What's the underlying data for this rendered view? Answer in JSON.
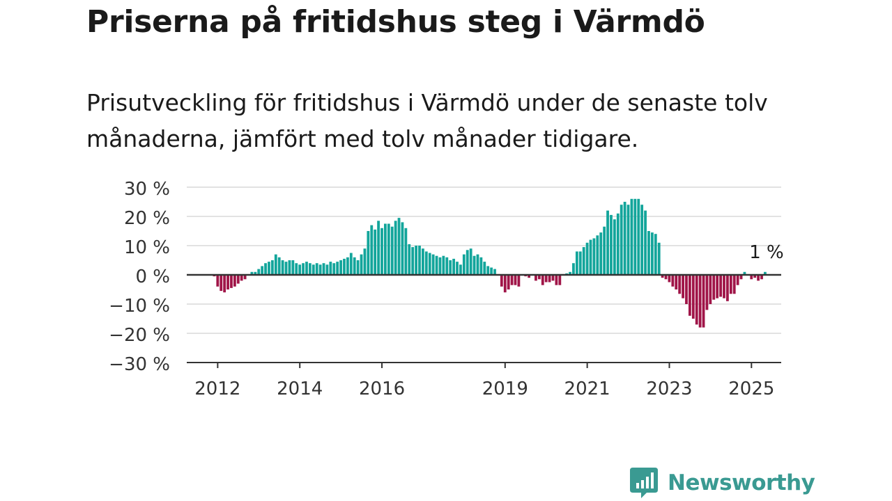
{
  "header": {
    "title": "Priserna på fritidshus steg i Värmdö",
    "subtitle": "Prisutveckling för fritidshus i Värmdö under de senaste tolv månaderna, jämfört med tolv månader tidigare."
  },
  "brand": {
    "name": "Newsworthy",
    "color": "#3a9a92"
  },
  "colors": {
    "positive": "#13a59b",
    "negative": "#a01548",
    "grid": "#d8d8d8",
    "axis": "#333333"
  },
  "chart_data": {
    "type": "bar",
    "x_start": "2011-12",
    "frequency": "monthly",
    "ylim": [
      -30,
      30
    ],
    "y_ticks": [
      -30,
      -20,
      -10,
      0,
      10,
      20,
      30
    ],
    "y_tick_labels": [
      "−30 %",
      "−20 %",
      "−10 %",
      "0 %",
      "10 %",
      "20 %",
      "30 %"
    ],
    "x_ticks": [
      "2012-01",
      "2014-01",
      "2016-01",
      "2019-01",
      "2021-01",
      "2023-01",
      "2025-01"
    ],
    "x_tick_labels": [
      "2012",
      "2014",
      "2016",
      "2019",
      "2021",
      "2023",
      "2025"
    ],
    "last_value_label": "1 %",
    "values": [
      -0.5,
      -4,
      -5.5,
      -6,
      -5,
      -4.5,
      -4,
      -3,
      -2,
      -1.5,
      0,
      1,
      1,
      2,
      3,
      4,
      4.5,
      5,
      7,
      6,
      5,
      4.5,
      5,
      5,
      4,
      3.5,
      4,
      4.5,
      4,
      3.5,
      4,
      3.5,
      4,
      3.5,
      4.5,
      4,
      4.5,
      5,
      5.5,
      6,
      7.5,
      6,
      5,
      7,
      9,
      15,
      17,
      15.5,
      18.5,
      16,
      17.5,
      17.5,
      16.5,
      18.5,
      19.5,
      18,
      16,
      10.5,
      9.5,
      10,
      10,
      9,
      8,
      7.5,
      7,
      6.5,
      6,
      6.5,
      6,
      5,
      5.5,
      4.5,
      3.5,
      7,
      8.5,
      9,
      6.5,
      7,
      6,
      4.5,
      3,
      2.5,
      2,
      0,
      -4,
      -6,
      -5,
      -3.5,
      -3.5,
      -4,
      0,
      -0.5,
      -1,
      0,
      -2,
      -1.5,
      -3.5,
      -2.5,
      -2.5,
      -2,
      -3.5,
      -3.5,
      0,
      0.5,
      1,
      4,
      8,
      8,
      9.5,
      11,
      12,
      12.5,
      13.5,
      14.5,
      16.5,
      22,
      20.5,
      19,
      21,
      24,
      25,
      24,
      26,
      26,
      26,
      24,
      22,
      15,
      14.5,
      14,
      11,
      -1,
      -1.5,
      -2.5,
      -4,
      -5,
      -6.5,
      -8,
      -10,
      -14,
      -15,
      -17,
      -18,
      -18,
      -12,
      -10,
      -8.5,
      -8,
      -7.5,
      -8,
      -9,
      -6.5,
      -6.5,
      -3.5,
      -1.5,
      1,
      0,
      -1.5,
      -1,
      -2,
      -1.5,
      1
    ]
  }
}
